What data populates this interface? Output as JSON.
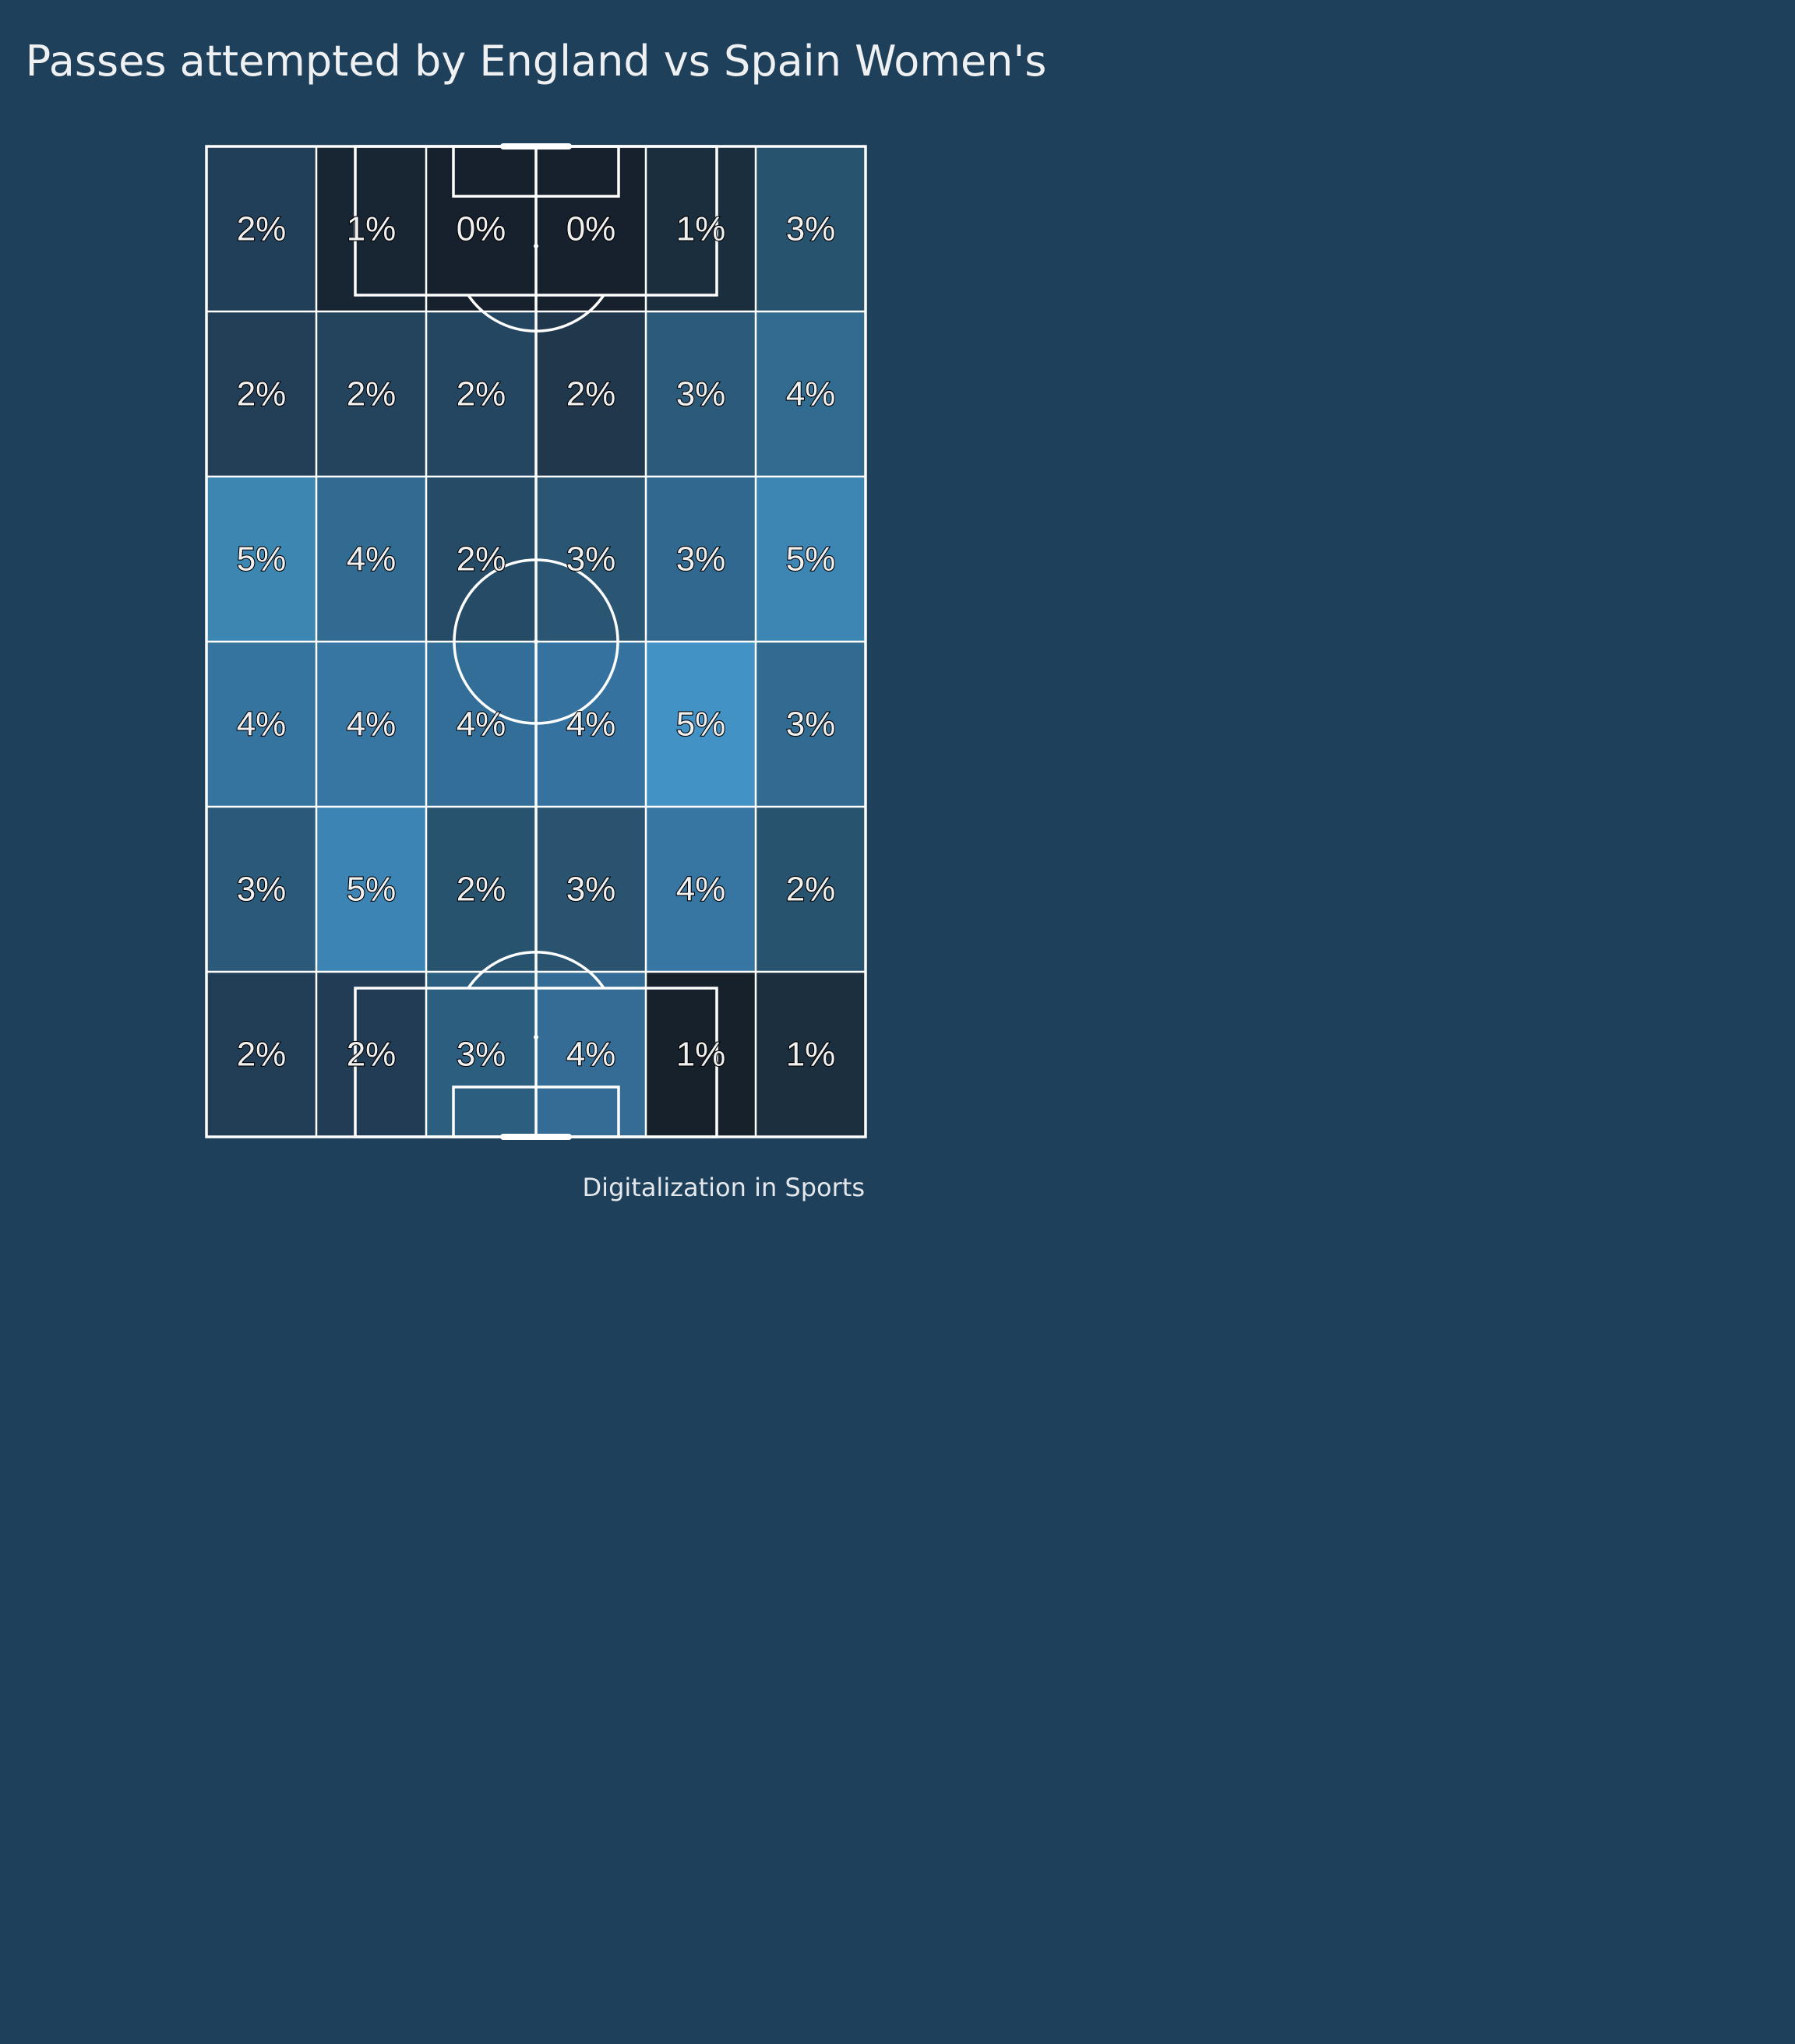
{
  "title": "Passes attempted by England vs Spain Women's",
  "credit": "Digitalization in Sports",
  "colors": {
    "background": "#1f405a",
    "pitch_lines": "#ffffff",
    "label_text": "#f0f0f0",
    "label_outline": "#000000",
    "colormap": "Blues (dark)"
  },
  "chart_data": {
    "type": "heatmap",
    "title": "Passes attempted by England vs Spain Women's",
    "value_unit": "%",
    "grid": {
      "rows": 6,
      "cols": 6
    },
    "cells": [
      [
        {
          "label": "2%",
          "color": "#213f58"
        },
        {
          "label": "1%",
          "color": "#182634"
        },
        {
          "label": "0%",
          "color": "#17212d"
        },
        {
          "label": "0%",
          "color": "#17212d"
        },
        {
          "label": "1%",
          "color": "#1b2e3e"
        },
        {
          "label": "3%",
          "color": "#28536f"
        }
      ],
      [
        {
          "label": "2%",
          "color": "#223f57"
        },
        {
          "label": "2%",
          "color": "#24445e"
        },
        {
          "label": "2%",
          "color": "#244660"
        },
        {
          "label": "2%",
          "color": "#20374c"
        },
        {
          "label": "3%",
          "color": "#2c5a7a"
        },
        {
          "label": "4%",
          "color": "#326b90"
        }
      ],
      [
        {
          "label": "5%",
          "color": "#3c86b2"
        },
        {
          "label": "4%",
          "color": "#326b91"
        },
        {
          "label": "2%",
          "color": "#264b66"
        },
        {
          "label": "3%",
          "color": "#2a5573"
        },
        {
          "label": "3%",
          "color": "#306890"
        },
        {
          "label": "5%",
          "color": "#3d86b3"
        }
      ],
      [
        {
          "label": "4%",
          "color": "#3674a0"
        },
        {
          "label": "4%",
          "color": "#3776a3"
        },
        {
          "label": "4%",
          "color": "#326e97"
        },
        {
          "label": "4%",
          "color": "#3672a0"
        },
        {
          "label": "5%",
          "color": "#4292c6"
        },
        {
          "label": "3%",
          "color": "#316b92"
        }
      ],
      [
        {
          "label": "3%",
          "color": "#2b5979"
        },
        {
          "label": "5%",
          "color": "#3c84b3"
        },
        {
          "label": "2%",
          "color": "#28536f"
        },
        {
          "label": "3%",
          "color": "#29536f"
        },
        {
          "label": "4%",
          "color": "#3776a2"
        },
        {
          "label": "2%",
          "color": "#28536f"
        }
      ],
      [
        {
          "label": "2%",
          "color": "#223e56"
        },
        {
          "label": "2%",
          "color": "#213c54"
        },
        {
          "label": "3%",
          "color": "#2c5e80"
        },
        {
          "label": "4%",
          "color": "#346c95"
        },
        {
          "label": "1%",
          "color": "#17212c"
        },
        {
          "label": "1%",
          "color": "#1b2f3e"
        }
      ]
    ]
  }
}
